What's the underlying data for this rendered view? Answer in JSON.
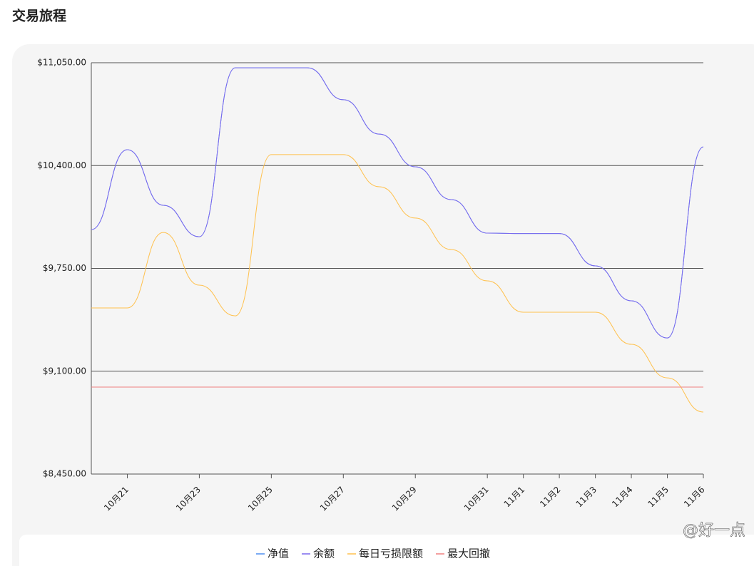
{
  "page_title": "交易旅程",
  "watermark": "@好一点",
  "chart_data": {
    "type": "line",
    "categories": [
      null,
      "10月21",
      null,
      "10月23",
      null,
      "10月25",
      null,
      "10月27",
      null,
      "10月29",
      null,
      "10月31",
      "11月1",
      "11月2",
      "11月3",
      "11月4",
      "11月5",
      "11月6"
    ],
    "series": [
      {
        "name": "净值",
        "color": "#4e8ff0",
        "values": [
          9995,
          10500,
          10149,
          9950,
          11018,
          11018,
          11018,
          10816,
          10599,
          10392,
          10185,
          9973,
          9970,
          9970,
          9766,
          9545,
          9310,
          10518
        ]
      },
      {
        "name": "余额",
        "color": "#7b68ee",
        "values": [
          9995,
          10500,
          10149,
          9950,
          11018,
          11018,
          11018,
          10816,
          10599,
          10392,
          10185,
          9973,
          9970,
          9970,
          9766,
          9545,
          9310,
          10518
        ]
      },
      {
        "name": "每日亏损限额",
        "color": "#ffc14d",
        "values": [
          9500,
          9500,
          9977,
          9644,
          9450,
          10469,
          10469,
          10469,
          10266,
          10068,
          9869,
          9671,
          9473,
          9473,
          9473,
          9270,
          9058,
          8842
        ]
      },
      {
        "name": "最大回撤",
        "color": "#f08080",
        "values": [
          9000,
          9000,
          9000,
          9000,
          9000,
          9000,
          9000,
          9000,
          9000,
          9000,
          9000,
          9000,
          9000,
          9000,
          9000,
          9000,
          9000,
          9000
        ]
      }
    ],
    "ylim": [
      8450,
      11050
    ],
    "yticks": [
      {
        "value": 8450,
        "label": "$8,450.00"
      },
      {
        "value": 9100,
        "label": "$9,100.00"
      },
      {
        "value": 9750,
        "label": "$9,750.00"
      },
      {
        "value": 10400,
        "label": "$10,400.00"
      },
      {
        "value": 11050,
        "label": "$11,050.00"
      }
    ],
    "grid": true,
    "legend": "bottom"
  }
}
